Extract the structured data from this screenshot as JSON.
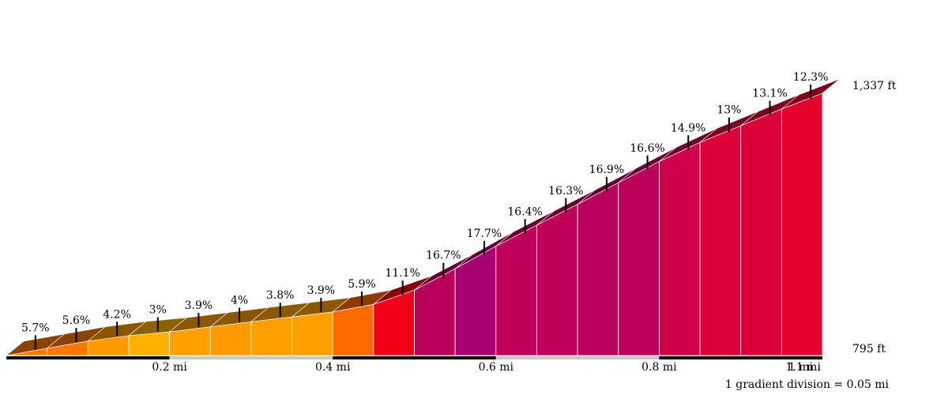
{
  "chart_data": {
    "type": "area",
    "subtype": "climb-gradient-profile",
    "x_unit": "mi",
    "y_unit": "ft",
    "segment_length": 0.05,
    "min_elevation_label": "795 ft",
    "max_elevation_label": "1,337 ft",
    "min_elevation": 795,
    "max_elevation": 1337,
    "segments": [
      {
        "label": "5.7%",
        "grade": 5.7,
        "color": "#ff7800"
      },
      {
        "label": "5.6%",
        "grade": 5.6,
        "color": "#ff7800"
      },
      {
        "label": "4.2%",
        "grade": 4.2,
        "color": "#ff9a00"
      },
      {
        "label": "3%",
        "grade": 3.0,
        "color": "#ffb000"
      },
      {
        "label": "3.9%",
        "grade": 3.9,
        "color": "#ffa000"
      },
      {
        "label": "4%",
        "grade": 4.0,
        "color": "#ff9a00"
      },
      {
        "label": "3.8%",
        "grade": 3.8,
        "color": "#ffa000"
      },
      {
        "label": "3.9%",
        "grade": 3.9,
        "color": "#ffa000"
      },
      {
        "label": "5.9%",
        "grade": 5.9,
        "color": "#ff6a00"
      },
      {
        "label": "11.1%",
        "grade": 11.1,
        "color": "#f20018"
      },
      {
        "label": "16.7%",
        "grade": 16.7,
        "color": "#b8005a"
      },
      {
        "label": "17.7%",
        "grade": 17.7,
        "color": "#a80070"
      },
      {
        "label": "16.4%",
        "grade": 16.4,
        "color": "#c00058"
      },
      {
        "label": "16.3%",
        "grade": 16.3,
        "color": "#c00058"
      },
      {
        "label": "16.9%",
        "grade": 16.9,
        "color": "#b8005e"
      },
      {
        "label": "16.6%",
        "grade": 16.6,
        "color": "#bc005a"
      },
      {
        "label": "14.9%",
        "grade": 14.9,
        "color": "#d0004a"
      },
      {
        "label": "13%",
        "grade": 13.0,
        "color": "#dc0038"
      },
      {
        "label": "13.1%",
        "grade": 13.1,
        "color": "#dc0038"
      },
      {
        "label": "12.3%",
        "grade": 12.3,
        "color": "#e6002c"
      }
    ],
    "x_ticks": [
      {
        "label": "0.2 mi",
        "value": 0.2
      },
      {
        "label": "0.4 mi",
        "value": 0.4
      },
      {
        "label": "0.6 mi",
        "value": 0.6
      },
      {
        "label": "0.8 mi",
        "value": 0.8
      },
      {
        "label": "1 mi",
        "value": 1.0
      },
      {
        "label": "1.1 mi",
        "value": 1.1
      }
    ],
    "footnote": "1 gradient division = 0.05 mi"
  }
}
